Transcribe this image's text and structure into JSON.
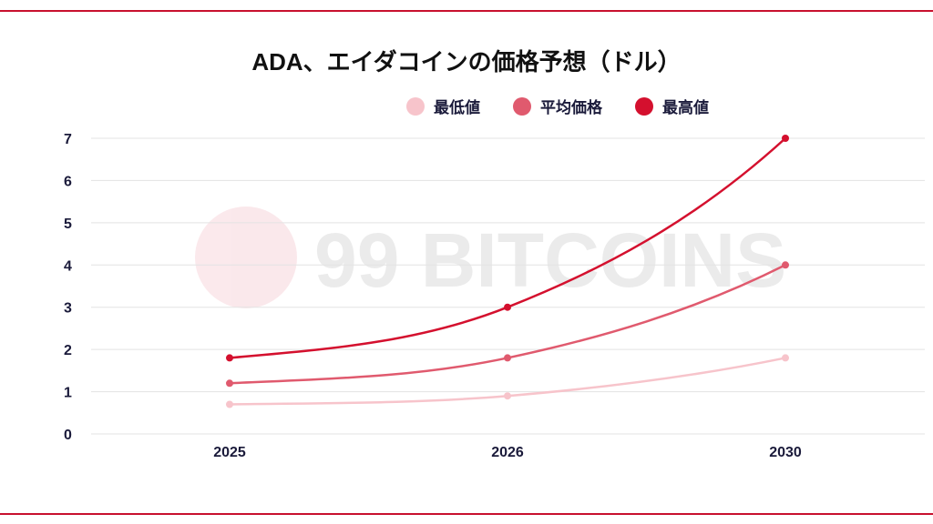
{
  "chart_data": {
    "type": "line",
    "title": "ADA、エイダコインの価格予想（ドル）",
    "categories": [
      "2025",
      "2026",
      "2030"
    ],
    "series": [
      {
        "name": "最低値",
        "values": [
          0.7,
          0.9,
          1.8
        ],
        "color": "#f7c4cb"
      },
      {
        "name": "平均価格",
        "values": [
          1.2,
          1.8,
          4.0
        ],
        "color": "#e05a6e"
      },
      {
        "name": "最高値",
        "values": [
          1.8,
          3.0,
          7.0
        ],
        "color": "#d4102e"
      }
    ],
    "ylim": [
      0,
      7
    ],
    "yticks": [
      "0",
      "1",
      "2",
      "3",
      "4",
      "5",
      "6",
      "7"
    ],
    "grid": true,
    "legend": "top-center",
    "xlabel": "",
    "ylabel": ""
  },
  "watermark": "99 BITCOINS"
}
